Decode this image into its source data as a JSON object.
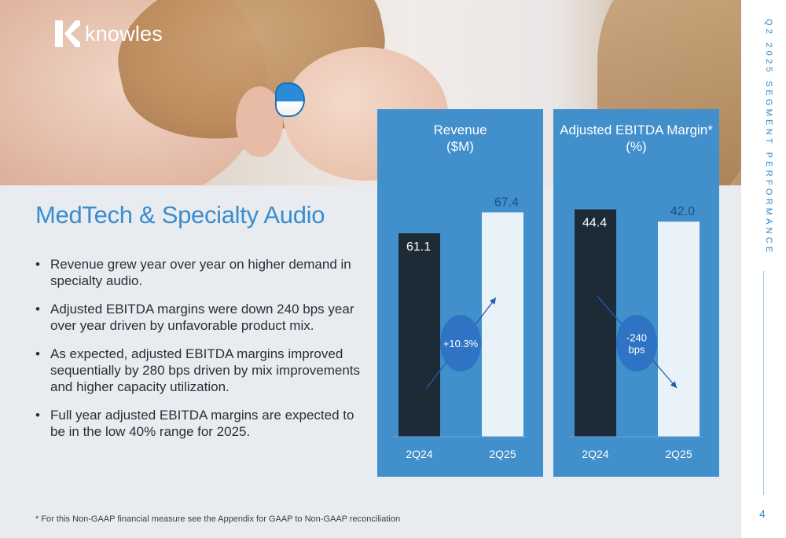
{
  "brand": {
    "name": "knowles"
  },
  "section_label": "Q2 2025 SEGMENT PERFORMANCE",
  "page_number": "4",
  "title": "MedTech & Specialty Audio",
  "bullets": [
    "Revenue grew year over year on higher demand in specialty audio.",
    "Adjusted EBITDA margins were down 240 bps year over year driven by unfavorable product mix.",
    "As expected, adjusted EBITDA margins improved sequentially by 280 bps driven by mix improvements and higher capacity utilization.",
    "Full year adjusted EBITDA margins are expected to be in the low 40% range for 2025."
  ],
  "bullet_symbol": "•",
  "footnote": "* For this Non-GAAP financial measure see the Appendix for GAAP to Non-GAAP reconciliation",
  "colors": {
    "panel": "#418fcb",
    "bar_prior": "#1c2b36",
    "bar_current": "#e9f2f9",
    "accent_text": "#3a8dcc",
    "bubble": "#2e73c4"
  },
  "chart_data": [
    {
      "type": "bar",
      "title_line1": "Revenue",
      "title_line2": "($M)",
      "categories": [
        "2Q24",
        "2Q25"
      ],
      "values": [
        61.1,
        67.4
      ],
      "value_labels": [
        "61.1",
        "67.4"
      ],
      "change_label": [
        "+10.3%"
      ],
      "change_direction": "up",
      "ylim": [
        0,
        80
      ]
    },
    {
      "type": "bar",
      "title_line1": "Adjusted EBITDA Margin*",
      "title_line2": "(%)",
      "categories": [
        "2Q24",
        "2Q25"
      ],
      "values": [
        44.4,
        42.0
      ],
      "value_labels": [
        "44.4",
        "42.0"
      ],
      "change_label": [
        "-240",
        "bps"
      ],
      "change_direction": "down",
      "ylim": [
        0,
        52
      ]
    }
  ]
}
